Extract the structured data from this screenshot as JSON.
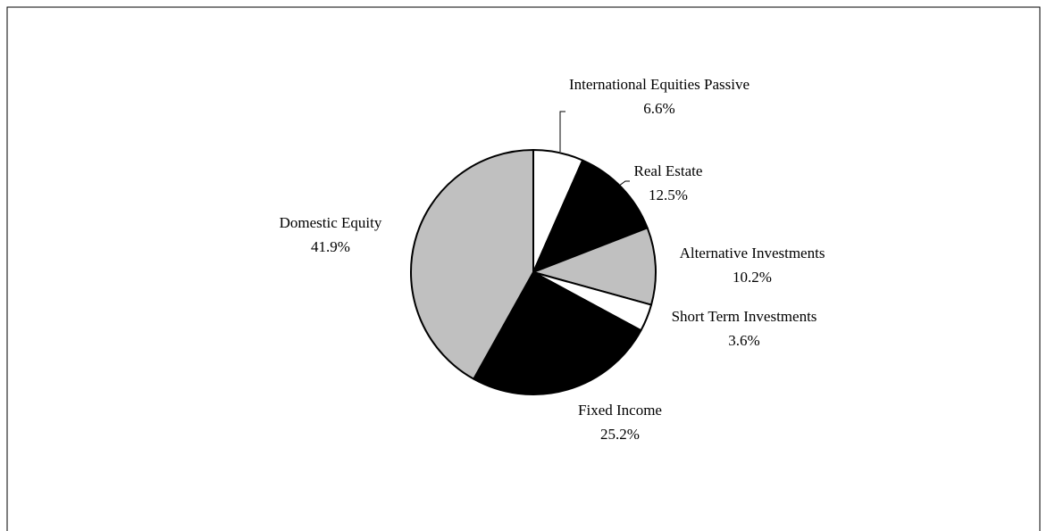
{
  "chart_data": {
    "type": "pie",
    "categories": [
      "International Equities Passive",
      "Real Estate",
      "Alternative Investments",
      "Short Term Investments",
      "Fixed Income",
      "Domestic Equity"
    ],
    "values": [
      6.6,
      12.5,
      10.2,
      3.6,
      25.2,
      41.9
    ],
    "value_labels": [
      "6.6%",
      "12.5%",
      "10.2%",
      "3.6%",
      "25.2%",
      "41.9%"
    ],
    "colors": [
      "#ffffff",
      "#000000",
      "#c0c0c0",
      "#ffffff",
      "#000000",
      "#c0c0c0"
    ]
  }
}
